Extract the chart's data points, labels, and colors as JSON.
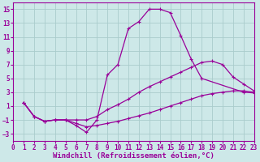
{
  "background_color": "#cde8e8",
  "line_color": "#990099",
  "grid_color": "#aacccc",
  "xlabel": "Windchill (Refroidissement éolien,°C)",
  "xlabel_fontsize": 6.5,
  "xticks": [
    0,
    1,
    2,
    3,
    4,
    5,
    6,
    7,
    8,
    9,
    10,
    11,
    12,
    13,
    14,
    15,
    16,
    17,
    18,
    19,
    20,
    21,
    22,
    23
  ],
  "yticks": [
    -3,
    -1,
    1,
    3,
    5,
    7,
    9,
    11,
    13,
    15
  ],
  "xlim": [
    0,
    23
  ],
  "ylim": [
    -4,
    16
  ],
  "curve1_x": [
    1,
    2,
    3,
    4,
    5,
    6,
    7,
    8,
    9,
    10,
    11,
    12,
    13,
    14,
    15,
    16,
    17,
    18,
    22,
    23
  ],
  "curve1_y": [
    1.5,
    -0.5,
    -1.2,
    -1.0,
    -1.0,
    -1.8,
    -2.8,
    -1.0,
    5.5,
    7.0,
    12.2,
    13.2,
    15.0,
    15.0,
    14.5,
    11.2,
    7.8,
    5.0,
    3.0,
    2.9
  ],
  "curve2_x": [
    1,
    2,
    3,
    4,
    5,
    6,
    7,
    8,
    9,
    10,
    11,
    12,
    13,
    14,
    15,
    16,
    17,
    18,
    19,
    20,
    21,
    22,
    23
  ],
  "curve2_y": [
    1.5,
    -0.5,
    -1.2,
    -1.0,
    -1.0,
    -1.0,
    -1.0,
    -0.5,
    0.5,
    1.2,
    2.0,
    3.0,
    3.8,
    4.5,
    5.2,
    5.9,
    6.6,
    7.3,
    7.5,
    7.0,
    5.2,
    4.2,
    3.2
  ],
  "curve3_x": [
    1,
    2,
    3,
    4,
    5,
    6,
    7,
    8,
    9,
    10,
    11,
    12,
    13,
    14,
    15,
    16,
    17,
    18,
    19,
    20,
    21,
    22,
    23
  ],
  "curve3_y": [
    1.5,
    -0.5,
    -1.2,
    -1.0,
    -1.0,
    -1.5,
    -2.0,
    -1.8,
    -1.5,
    -1.2,
    -0.8,
    -0.4,
    0.0,
    0.5,
    1.0,
    1.5,
    2.0,
    2.5,
    2.8,
    3.0,
    3.2,
    3.2,
    3.0
  ]
}
